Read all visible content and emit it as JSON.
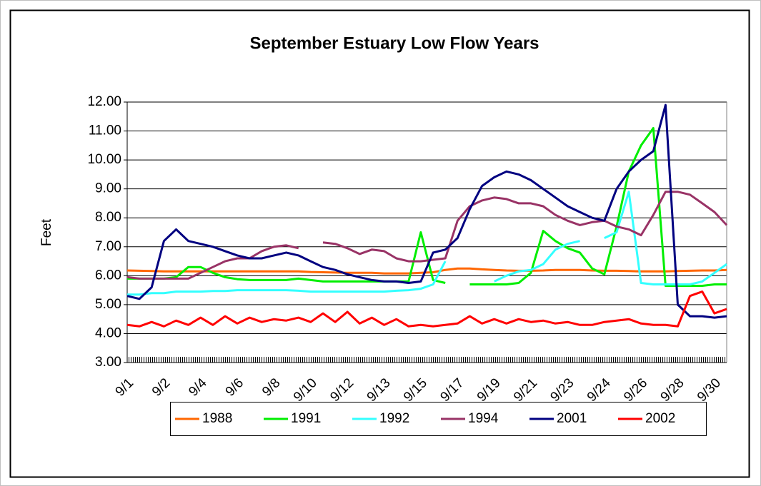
{
  "chart_data": {
    "type": "line",
    "title": "September Estuary Low Flow Years",
    "y_label": "Feet",
    "categories": [
      "9/1",
      null,
      null,
      "9/2",
      null,
      null,
      "9/4",
      null,
      null,
      "9/6",
      null,
      null,
      "9/8",
      null,
      null,
      "9/10",
      null,
      null,
      "9/12",
      null,
      null,
      "9/13",
      null,
      null,
      "9/15",
      null,
      null,
      "9/17",
      null,
      null,
      "9/19",
      null,
      null,
      "9/21",
      null,
      null,
      "9/23",
      null,
      null,
      "9/24",
      null,
      null,
      "9/26",
      null,
      null,
      "9/28",
      null,
      null,
      "9/30",
      null
    ],
    "ylim": [
      3,
      12
    ],
    "yticks": [
      {
        "value": 3,
        "label": "3.00"
      },
      {
        "value": 4,
        "label": "4.00"
      },
      {
        "value": 5,
        "label": "5.00"
      },
      {
        "value": 6,
        "label": "6.00"
      },
      {
        "value": 7,
        "label": "7.00"
      },
      {
        "value": 8,
        "label": "8.00"
      },
      {
        "value": 9,
        "label": "9.00"
      },
      {
        "value": 10,
        "label": "10.00"
      },
      {
        "value": 11,
        "label": "11.00"
      },
      {
        "value": 12,
        "label": "12.00"
      }
    ],
    "grid": true,
    "legend": "bottom",
    "series": [
      {
        "name": "1988",
        "color": "#ff6600",
        "values": [
          6.18,
          6.17,
          6.16,
          6.15,
          6.15,
          6.15,
          6.15,
          6.15,
          6.15,
          6.15,
          6.15,
          6.15,
          6.15,
          6.15,
          6.15,
          6.13,
          6.12,
          6.11,
          6.1,
          6.1,
          6.1,
          6.08,
          6.08,
          6.08,
          6.1,
          6.12,
          6.2,
          6.25,
          6.25,
          6.22,
          6.2,
          6.18,
          6.17,
          6.17,
          6.18,
          6.2,
          6.2,
          6.2,
          6.18,
          6.17,
          6.17,
          6.16,
          6.15,
          6.15,
          6.15,
          6.16,
          6.17,
          6.18,
          6.18,
          6.2
        ]
      },
      {
        "name": "1991",
        "color": "#00ee00",
        "values": [
          5.9,
          5.9,
          5.9,
          5.9,
          5.95,
          6.3,
          6.3,
          6.1,
          5.95,
          5.88,
          5.85,
          5.85,
          5.85,
          5.85,
          5.9,
          5.85,
          5.8,
          5.8,
          5.8,
          5.8,
          5.8,
          5.8,
          5.8,
          5.8,
          7.5,
          5.85,
          5.75,
          null,
          5.7,
          5.7,
          5.7,
          5.7,
          5.75,
          6.1,
          7.55,
          7.2,
          6.95,
          6.8,
          6.25,
          6.05,
          7.7,
          9.6,
          10.5,
          11.1,
          5.65,
          5.65,
          5.65,
          5.65,
          5.7,
          5.7
        ]
      },
      {
        "name": "1992",
        "color": "#33ffff",
        "values": [
          5.35,
          5.35,
          5.4,
          5.4,
          5.45,
          5.45,
          5.45,
          5.47,
          5.47,
          5.5,
          5.5,
          5.5,
          5.5,
          5.5,
          5.48,
          5.45,
          5.45,
          5.45,
          5.45,
          5.45,
          5.45,
          5.45,
          5.48,
          5.5,
          5.55,
          5.7,
          6.5,
          null,
          5.55,
          null,
          5.8,
          6.0,
          6.15,
          6.2,
          6.4,
          6.9,
          7.1,
          7.2,
          null,
          7.3,
          7.5,
          8.9,
          5.75,
          5.7,
          5.7,
          5.7,
          5.7,
          5.8,
          6.1,
          6.4
        ]
      },
      {
        "name": "1994",
        "color": "#993366",
        "values": [
          5.95,
          5.9,
          5.9,
          5.9,
          5.9,
          5.9,
          6.1,
          6.3,
          6.5,
          6.6,
          6.6,
          6.85,
          7.0,
          7.05,
          6.95,
          null,
          7.15,
          7.1,
          6.95,
          6.75,
          6.9,
          6.85,
          6.6,
          6.5,
          6.5,
          6.55,
          6.6,
          7.9,
          8.4,
          8.6,
          8.7,
          8.65,
          8.5,
          8.5,
          8.4,
          8.1,
          7.9,
          7.75,
          7.85,
          7.9,
          7.7,
          7.6,
          7.4,
          8.1,
          8.9,
          8.9,
          8.8,
          8.5,
          8.2,
          7.75
        ]
      },
      {
        "name": "2001",
        "color": "#000080",
        "values": [
          5.3,
          5.2,
          5.6,
          7.2,
          7.6,
          7.2,
          7.1,
          7.0,
          6.85,
          6.7,
          6.6,
          6.6,
          6.7,
          6.8,
          6.7,
          6.5,
          6.3,
          6.2,
          6.05,
          5.95,
          5.85,
          5.8,
          5.8,
          5.75,
          5.8,
          6.8,
          6.9,
          7.3,
          8.3,
          9.1,
          9.4,
          9.6,
          9.5,
          9.3,
          9.0,
          8.7,
          8.4,
          8.2,
          8.0,
          7.9,
          9.0,
          9.6,
          10.0,
          10.3,
          11.9,
          5.0,
          4.6,
          4.6,
          4.55,
          4.6
        ]
      },
      {
        "name": "2002",
        "color": "#ff0000",
        "values": [
          4.3,
          4.25,
          4.4,
          4.25,
          4.45,
          4.3,
          4.55,
          4.3,
          4.6,
          4.35,
          4.55,
          4.4,
          4.5,
          4.45,
          4.55,
          4.4,
          4.7,
          4.4,
          4.75,
          4.35,
          4.55,
          4.3,
          4.5,
          4.25,
          4.3,
          4.25,
          4.3,
          4.35,
          4.6,
          4.35,
          4.5,
          4.35,
          4.5,
          4.4,
          4.45,
          4.35,
          4.4,
          4.3,
          4.3,
          4.4,
          4.45,
          4.5,
          4.35,
          4.3,
          4.3,
          4.25,
          5.3,
          5.45,
          4.7,
          4.85
        ]
      }
    ]
  }
}
